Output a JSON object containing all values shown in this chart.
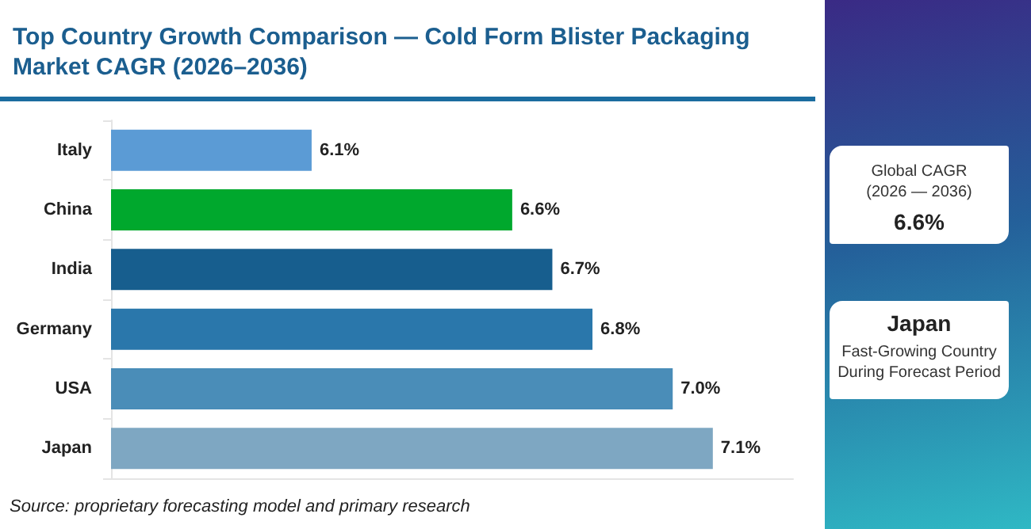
{
  "chart_data": [
    {
      "type": "bar",
      "orientation": "horizontal",
      "title": "Top Country Growth Comparison — Cold Form Blister Packaging Market CAGR (2026–2036)",
      "categories": [
        "Italy",
        "China",
        "India",
        "Germany",
        "USA",
        "Japan"
      ],
      "values": [
        6.1,
        6.6,
        6.7,
        6.8,
        7.0,
        7.1
      ],
      "value_labels": [
        "6.1%",
        "6.6%",
        "6.7%",
        "6.8%",
        "7.0%",
        "7.1%"
      ],
      "colors": [
        "#5b9bd5",
        "#00a82d",
        "#175e8e",
        "#2a77ab",
        "#4a8db8",
        "#7ea7c2"
      ],
      "xlim": [
        5.6,
        7.3
      ],
      "tick_labels": "y",
      "grid": false,
      "annotations": [
        "Source: proprietary forecasting model and primary research"
      ]
    },
    {
      "type": "other",
      "annotations": [
        "Global CAGR",
        "(2026 — 2036)",
        "6.6%",
        "Japan",
        "Fast-Growing Country During Forecast Period"
      ]
    }
  ]
}
